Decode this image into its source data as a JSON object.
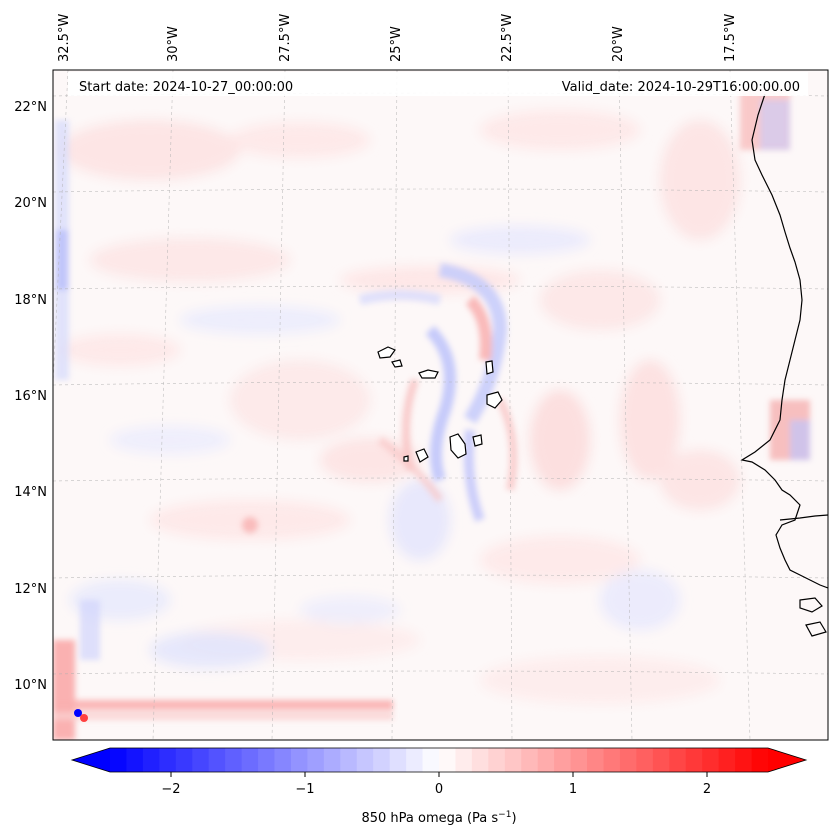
{
  "header": {
    "start_date": "Start date: 2024-10-27_00:00:00",
    "valid_date": "Valid_date: 2024-10-29T16:00:00.00"
  },
  "map": {
    "region": "Eastern tropical Atlantic / Cabo Verde",
    "lon_labels": [
      "32.5°W",
      "30°W",
      "27.5°W",
      "25°W",
      "22.5°W",
      "20°W",
      "17.5°W"
    ],
    "lat_labels": [
      "22°N",
      "20°N",
      "18°N",
      "16°N",
      "14°N",
      "12°N",
      "10°N"
    ],
    "field": "850 hPa omega"
  },
  "colorbar": {
    "label": "850 hPa omega (Pa s",
    "label_sup": "−1",
    "label_close": ")",
    "ticks": [
      "−2",
      "−1",
      "0",
      "1",
      "2"
    ],
    "range": [
      -2.7,
      2.7
    ],
    "colormap": "bwr",
    "color_min": "#0000ff",
    "color_mid": "#ffffff",
    "color_max": "#ff0000",
    "extend": "both"
  }
}
